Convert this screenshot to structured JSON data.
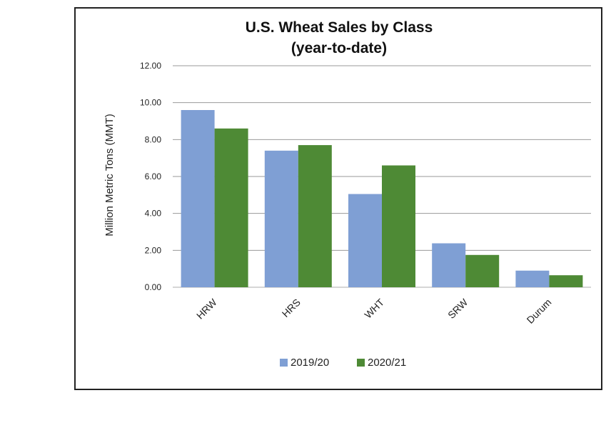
{
  "chart_data": {
    "type": "bar",
    "title": "U.S. Wheat Sales by Class",
    "subtitle": "(year-to-date)",
    "ylabel": "Million Metric Tons (MMT)",
    "xlabel": "",
    "ylim": [
      0,
      12
    ],
    "yticks": [
      "0.00",
      "2.00",
      "4.00",
      "6.00",
      "8.00",
      "10.00",
      "12.00"
    ],
    "grid": true,
    "legend_position": "bottom",
    "categories": [
      "HRW",
      "HRS",
      "WHT",
      "SRW",
      "Durum"
    ],
    "series": [
      {
        "name": "2019/20",
        "color": "#7F9FD4",
        "values": [
          9.6,
          7.4,
          5.05,
          2.38,
          0.9
        ]
      },
      {
        "name": "2020/21",
        "color": "#4E8A35",
        "values": [
          8.6,
          7.7,
          6.6,
          1.75,
          0.65
        ]
      }
    ]
  }
}
